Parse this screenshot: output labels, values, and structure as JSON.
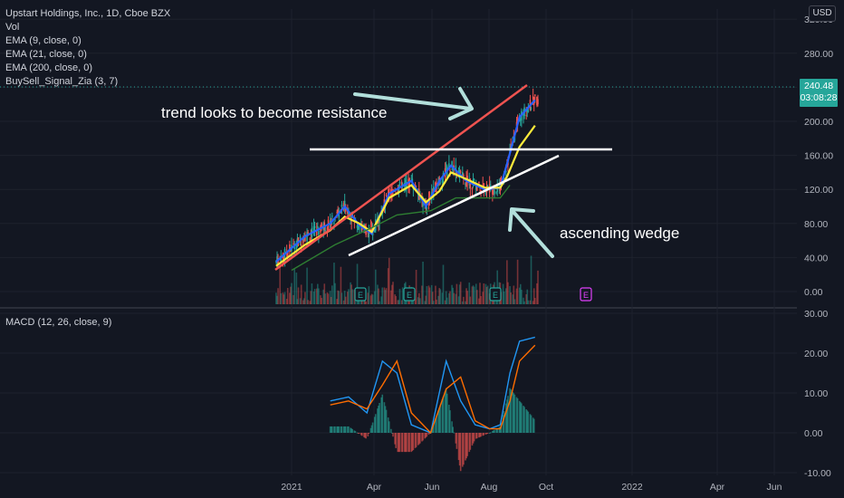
{
  "legend": {
    "symbol": "Upstart Holdings, Inc., 1D, Cboe BZX",
    "vol": "Vol",
    "ema9": "EMA (9, close, 0)",
    "ema21": "EMA (21, close, 0)",
    "ema200": "EMA (200, close, 0)",
    "buysell": "BuySell_Signal_Zia (3, 7)"
  },
  "currency_badge": "USD",
  "price_tag": {
    "price": "240.48",
    "countdown": "03:08:28"
  },
  "macd_legend": "MACD (12, 26, close, 9)",
  "annotations": {
    "trend": "trend looks to become resistance",
    "wedge": "ascending wedge"
  },
  "earnings_marker": "E",
  "colors": {
    "background": "#131722",
    "ema9": "#2962ff",
    "ema21": "#ffeb3b",
    "ema200": "#2e7d32",
    "resistance_trend": "#ef5350",
    "arrow": "#b2dfdb",
    "macd_line": "#2196f3",
    "signal_line": "#ff6d00",
    "earnings": "#26a69a",
    "upcoming_earnings": "#e040fb"
  },
  "chart_data": [
    {
      "type": "line",
      "title": "Upstart Holdings, Inc., 1D, Cboe BZX",
      "x_ticks": [
        "2021",
        "Apr",
        "Jun",
        "Aug",
        "Oct",
        "2022",
        "Apr",
        "Jun"
      ],
      "y_ticks": [
        "0.00",
        "40.00",
        "80.00",
        "120.00",
        "160.00",
        "200.00",
        "240.00",
        "280.00",
        "320.00"
      ],
      "ylim": [
        0,
        330
      ],
      "last_price": 240.48,
      "series": [
        {
          "name": "EMA (9, close, 0)",
          "x": [
            "2020-12-16",
            "2021-01-15",
            "2021-02-10",
            "2021-02-25",
            "2021-03-12",
            "2021-03-25",
            "2021-04-12",
            "2021-05-05",
            "2021-05-20",
            "2021-06-03",
            "2021-06-15",
            "2021-07-01",
            "2021-07-20",
            "2021-08-05",
            "2021-08-12",
            "2021-08-25",
            "2021-09-10"
          ],
          "values": [
            35,
            65,
            80,
            100,
            78,
            68,
            115,
            130,
            100,
            130,
            148,
            130,
            120,
            122,
            150,
            205,
            225
          ]
        },
        {
          "name": "EMA (21, close, 0)",
          "x": [
            "2020-12-16",
            "2021-01-15",
            "2021-02-10",
            "2021-02-25",
            "2021-03-12",
            "2021-03-25",
            "2021-04-12",
            "2021-05-05",
            "2021-05-20",
            "2021-06-03",
            "2021-06-15",
            "2021-07-01",
            "2021-07-20",
            "2021-08-05",
            "2021-08-12",
            "2021-08-25",
            "2021-09-10"
          ],
          "values": [
            30,
            55,
            72,
            88,
            80,
            70,
            110,
            125,
            105,
            118,
            140,
            132,
            122,
            122,
            135,
            170,
            195
          ]
        },
        {
          "name": "EMA (200, close, 0)",
          "x": [
            "2021-01-01",
            "2021-02-15",
            "2021-03-25",
            "2021-04-20",
            "2021-05-25",
            "2021-06-20",
            "2021-07-15",
            "2021-08-05",
            "2021-08-15"
          ],
          "values": [
            25,
            55,
            75,
            90,
            95,
            110,
            110,
            110,
            125
          ]
        }
      ],
      "annotations": [
        "trend looks to become resistance",
        "ascending wedge"
      ]
    },
    {
      "type": "line",
      "title": "MACD (12, 26, close, 9)",
      "x_ticks": [
        "2021",
        "Apr",
        "Jun",
        "Aug",
        "Oct",
        "2022",
        "Apr",
        "Jun"
      ],
      "y_ticks": [
        "-10.00",
        "0.00",
        "10.00",
        "20.00",
        "30.00"
      ],
      "ylim": [
        -10,
        30
      ],
      "series": [
        {
          "name": "MACD",
          "x": [
            "2021-02-10",
            "2021-03-01",
            "2021-03-20",
            "2021-04-05",
            "2021-04-20",
            "2021-05-05",
            "2021-05-25",
            "2021-06-10",
            "2021-06-25",
            "2021-07-10",
            "2021-07-25",
            "2021-08-05",
            "2021-08-15",
            "2021-08-25",
            "2021-09-10"
          ],
          "values": [
            8,
            9,
            5,
            18,
            15,
            2,
            0,
            18,
            8,
            2,
            1,
            2,
            15,
            23,
            24
          ]
        },
        {
          "name": "Signal",
          "x": [
            "2021-02-10",
            "2021-03-01",
            "2021-03-20",
            "2021-04-05",
            "2021-04-20",
            "2021-05-05",
            "2021-05-25",
            "2021-06-10",
            "2021-06-25",
            "2021-07-10",
            "2021-07-25",
            "2021-08-05",
            "2021-08-15",
            "2021-08-25",
            "2021-09-10"
          ],
          "values": [
            7,
            8,
            6,
            12,
            18,
            5,
            0,
            11,
            14,
            3,
            1,
            1,
            8,
            18,
            22
          ]
        }
      ]
    }
  ]
}
